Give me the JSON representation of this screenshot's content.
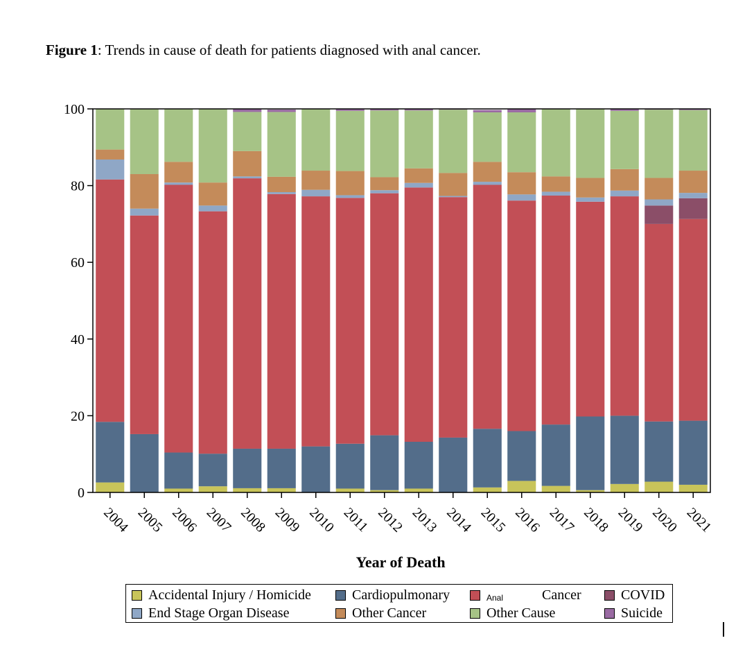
{
  "caption": {
    "label": "Figure 1",
    "text": ": Trends in cause of death for patients diagnosed with anal cancer."
  },
  "chart_data": {
    "type": "bar",
    "stacked": true,
    "xlabel": "Year of Death",
    "ylabel": "",
    "ylim": [
      0,
      100
    ],
    "yticks": [
      0,
      20,
      40,
      60,
      80,
      100
    ],
    "categories": [
      "2004",
      "2005",
      "2006",
      "2007",
      "2008",
      "2009",
      "2010",
      "2011",
      "2012",
      "2013",
      "2014",
      "2015",
      "2016",
      "2017",
      "2018",
      "2019",
      "2020",
      "2021"
    ],
    "series": [
      {
        "name": "Accidental Injury / Homicide",
        "color": "#c8c45a",
        "values": [
          2.6,
          0,
          1.0,
          1.6,
          1.1,
          1.1,
          0,
          1.0,
          0.6,
          1.0,
          0,
          1.3,
          3.0,
          1.7,
          0.6,
          2.2,
          2.8,
          2.0
        ]
      },
      {
        "name": "Cardiopulmonary",
        "color": "#536d8a",
        "values": [
          15.8,
          15.2,
          9.4,
          8.5,
          10.3,
          10.3,
          12.0,
          11.7,
          14.3,
          12.2,
          14.3,
          15.3,
          13.0,
          16.0,
          19.2,
          17.8,
          15.7,
          16.7
        ]
      },
      {
        "name": "Anal Cancer",
        "color": "#c24f56",
        "values": [
          63.2,
          57.0,
          69.8,
          63.2,
          70.5,
          66.4,
          65.2,
          64.1,
          63.1,
          66.3,
          62.7,
          63.6,
          60.1,
          59.7,
          56.0,
          57.2,
          51.5,
          52.6
        ]
      },
      {
        "name": "COVID",
        "color": "#8b4e68",
        "values": [
          0,
          0,
          0,
          0,
          0,
          0,
          0,
          0,
          0,
          0,
          0,
          0,
          0,
          0,
          0,
          0,
          4.8,
          5.4
        ]
      },
      {
        "name": "End Stage Organ Disease",
        "color": "#8fa7c6",
        "values": [
          5.2,
          1.8,
          0.6,
          1.5,
          0.5,
          0.5,
          1.7,
          0.7,
          0.8,
          1.2,
          0.3,
          0.8,
          1.6,
          1.0,
          1.1,
          1.5,
          1.6,
          1.4
        ]
      },
      {
        "name": "Other Cancer",
        "color": "#c48b5a",
        "values": [
          2.6,
          9.0,
          5.4,
          6.0,
          6.6,
          4.0,
          5.0,
          6.3,
          3.4,
          3.8,
          6.0,
          5.2,
          5.8,
          4.0,
          5.1,
          5.6,
          5.6,
          5.8
        ]
      },
      {
        "name": "Other Cause",
        "color": "#a6c386",
        "values": [
          10.6,
          17.0,
          13.8,
          19.2,
          10.2,
          16.9,
          16.1,
          15.7,
          17.4,
          15.1,
          16.5,
          12.9,
          15.6,
          17.6,
          18.0,
          15.2,
          17.8,
          15.8
        ]
      },
      {
        "name": "Suicide",
        "color": "#9a6ba3",
        "values": [
          0,
          0,
          0,
          0,
          0.8,
          0.6,
          0,
          0.5,
          0.4,
          0.4,
          0.2,
          0.6,
          0.9,
          0,
          0,
          0.6,
          0.2,
          0.3
        ]
      }
    ],
    "legend": {
      "position": "bottom",
      "entries": [
        {
          "series": "Accidental Injury / Homicide",
          "color": "#c8c45a",
          "parts": [
            "Accidental Injury / Homicide"
          ]
        },
        {
          "series": "Cardiopulmonary",
          "color": "#536d8a",
          "parts": [
            "Cardiopulmonary"
          ]
        },
        {
          "series": "Anal Cancer",
          "color": "#c24f56",
          "parts": [
            "Anal",
            "Cancer"
          ]
        },
        {
          "series": "COVID",
          "color": "#8b4e68",
          "parts": [
            "COVID"
          ]
        },
        {
          "series": "End Stage Organ Disease",
          "color": "#8fa7c6",
          "parts": [
            "End Stage Organ Disease"
          ]
        },
        {
          "series": "Other Cancer",
          "color": "#c48b5a",
          "parts": [
            "Other Cancer"
          ]
        },
        {
          "series": "Other Cause",
          "color": "#a6c386",
          "parts": [
            "Other Cause"
          ]
        },
        {
          "series": "Suicide",
          "color": "#9a6ba3",
          "parts": [
            "Suicide"
          ]
        }
      ]
    },
    "grid": false
  }
}
